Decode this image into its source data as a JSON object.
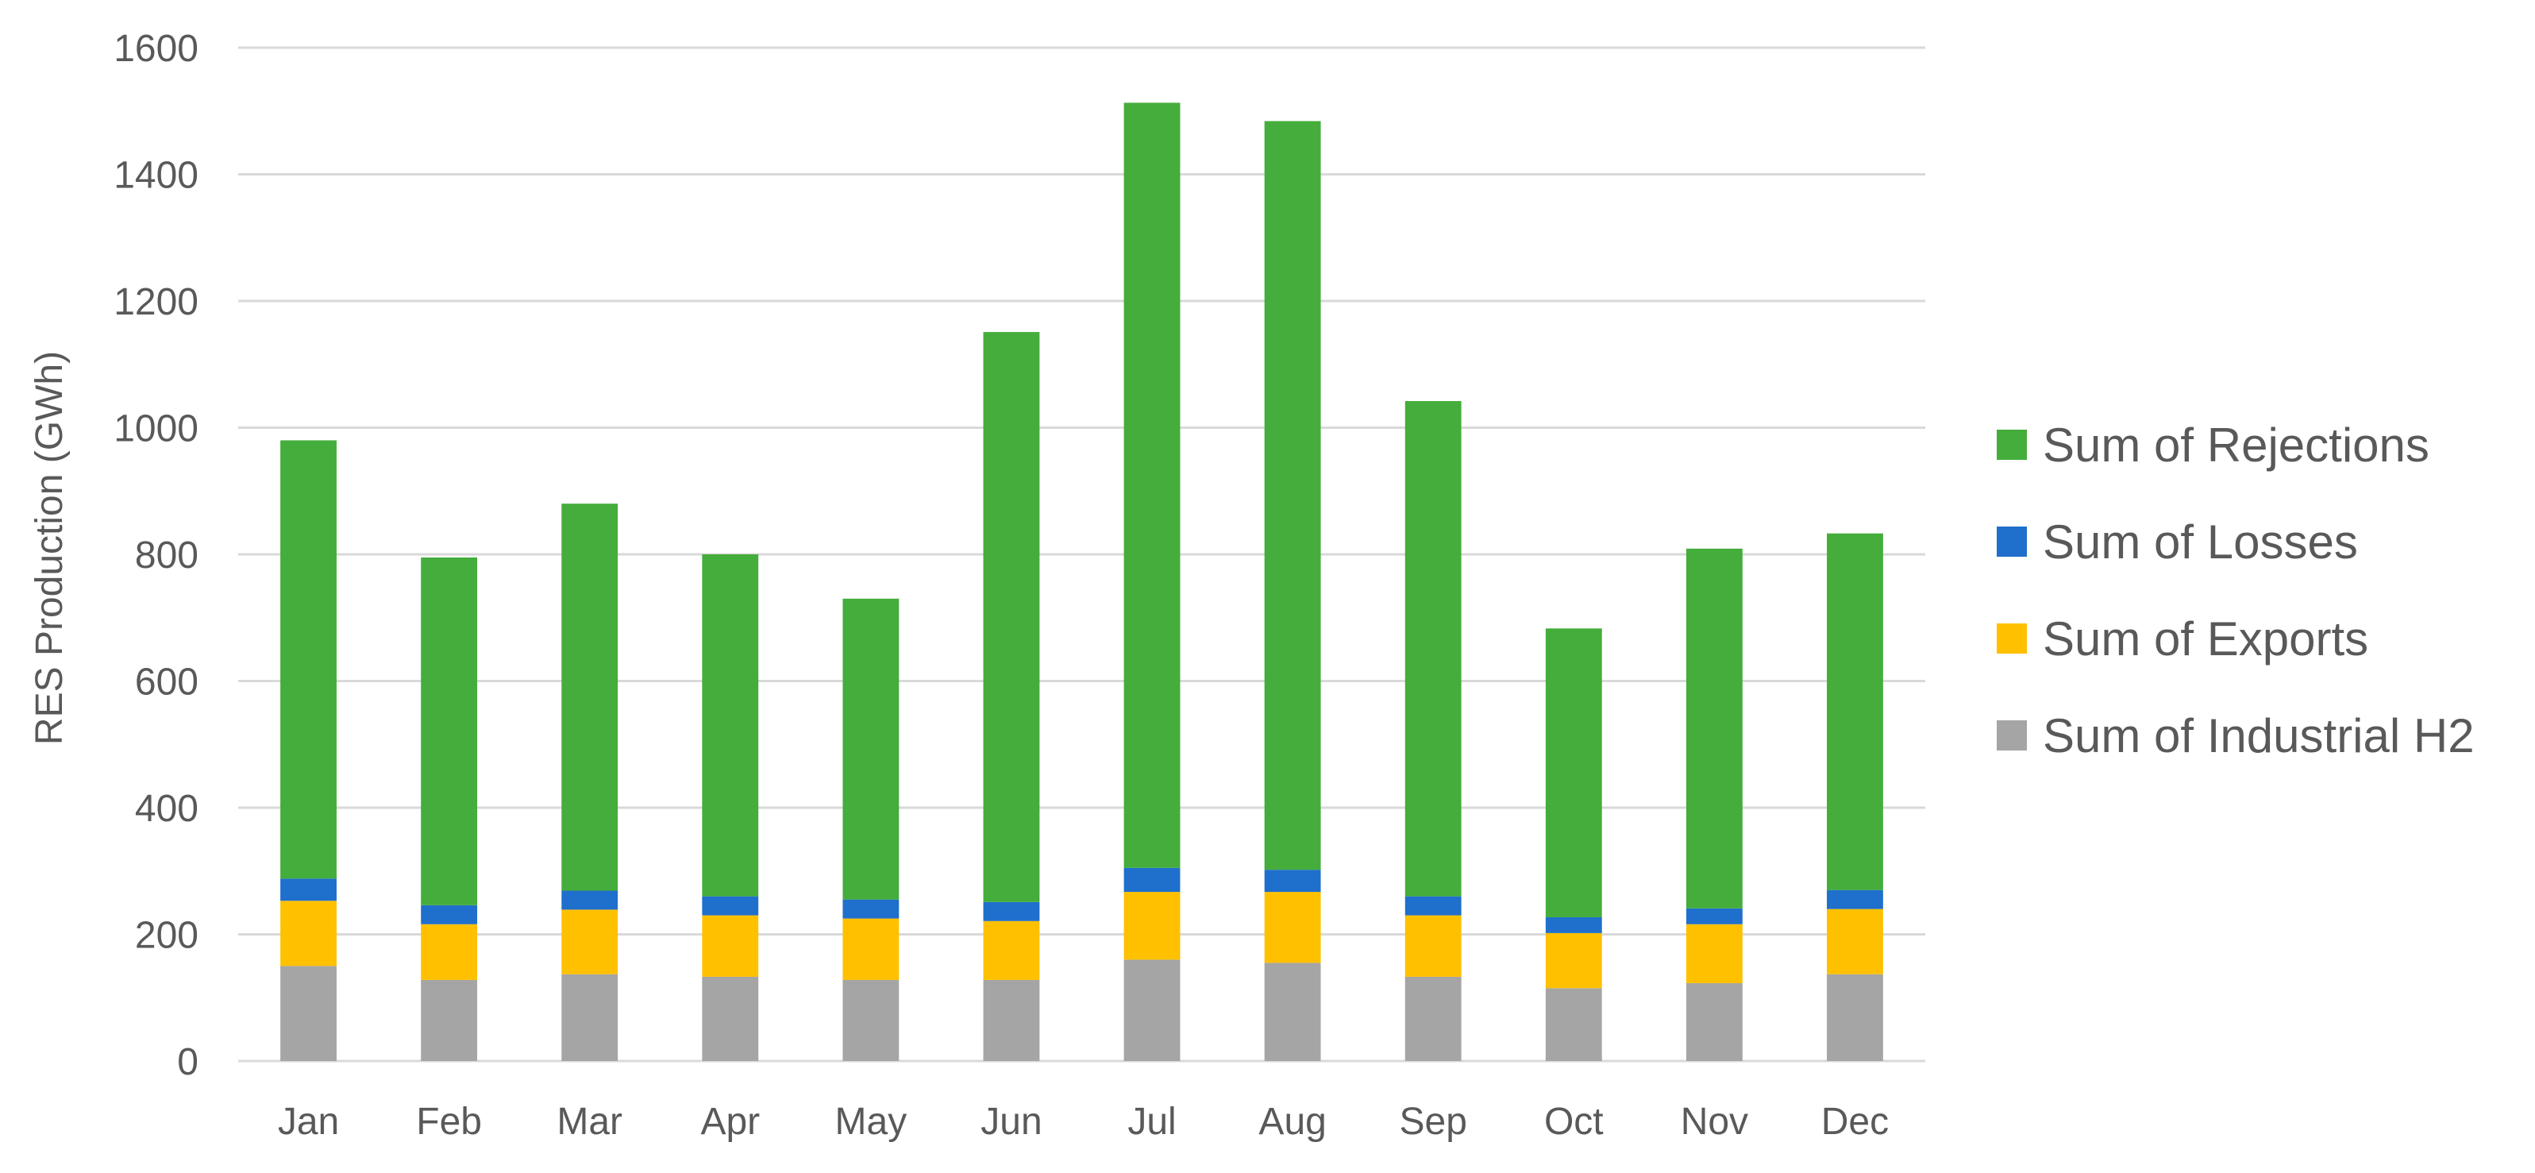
{
  "chart_data": {
    "type": "bar",
    "stacked": true,
    "title": "",
    "xlabel": "",
    "ylabel": "RES Production (GWh)",
    "ylim": [
      0,
      1600
    ],
    "yticks": [
      "0",
      "200",
      "400",
      "600",
      "800",
      "1000",
      "1200",
      "1400",
      "1600"
    ],
    "grid": true,
    "legend_position": "right",
    "categories": [
      "Jan",
      "Feb",
      "Mar",
      "Apr",
      "May",
      "Jun",
      "Jul",
      "Aug",
      "Sep",
      "Oct",
      "Nov",
      "Dec"
    ],
    "series": [
      {
        "name": "Sum of Industrial H2",
        "color": "#a5a5a5",
        "values": [
          150,
          128,
          137,
          133,
          128,
          128,
          160,
          155,
          133,
          115,
          123,
          137
        ]
      },
      {
        "name": "Sum of Exports",
        "color": "#ffc000",
        "values": [
          103,
          88,
          102,
          97,
          97,
          93,
          107,
          112,
          97,
          87,
          93,
          103
        ]
      },
      {
        "name": "Sum of Losses",
        "color": "#1f6fcc",
        "values": [
          35,
          30,
          30,
          30,
          30,
          30,
          38,
          35,
          30,
          25,
          25,
          30
        ]
      },
      {
        "name": "Sum of Rejections",
        "color": "#44ad3b",
        "values": [
          692,
          549,
          611,
          540,
          475,
          900,
          1208,
          1182,
          782,
          456,
          568,
          563
        ]
      }
    ],
    "legend_order": [
      "Sum of Rejections",
      "Sum of Losses",
      "Sum of Exports",
      "Sum of Industrial H2"
    ]
  }
}
